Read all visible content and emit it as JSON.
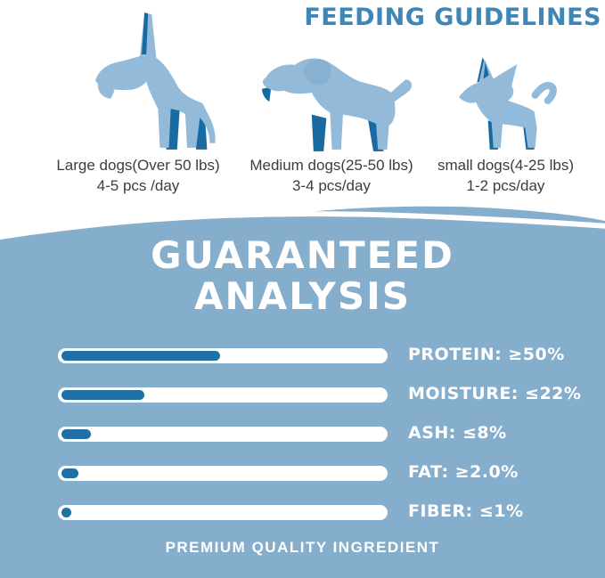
{
  "header": {
    "title": "FEEDING GUIDELINES"
  },
  "feeding": {
    "dogs": [
      {
        "name": "large-dog",
        "size_label": "Large dogs(Over 50 lbs)",
        "serving": "4-5 pcs /day"
      },
      {
        "name": "medium-dog",
        "size_label": "Medium dogs(25-50 lbs)",
        "serving": "3-4 pcs/day"
      },
      {
        "name": "small-dog",
        "size_label": "small dogs(4-25 lbs)",
        "serving": "1-2 pcs/day"
      }
    ]
  },
  "analysis": {
    "title_line1": "GUARANTEED",
    "title_line2": "ANALYSIS",
    "footer": "PREMIUM QUALITY INGREDIENT"
  },
  "chart_data": {
    "type": "bar",
    "title": "GUARANTEED ANALYSIS",
    "categories": [
      "PROTEIN",
      "MOISTURE",
      "ASH",
      "FAT",
      "FIBER"
    ],
    "labels": [
      "PROTEIN: ≥50%",
      "MOISTURE: ≤22%",
      "ASH: ≤8%",
      "FAT: ≥2.0%",
      "FIBER: ≤1%"
    ],
    "values_declared": [
      "≥50%",
      "≤22%",
      "≤8%",
      "≥2.0%",
      "≤1%"
    ],
    "values_percent_fill": [
      48,
      25,
      9,
      5,
      3
    ],
    "xlim": [
      0,
      100
    ],
    "legend": "none",
    "orientation": "horizontal"
  },
  "colors": {
    "headline_blue": "#3e86b5",
    "section_blue": "#85aecd",
    "bar_fill_blue": "#1f70a6",
    "bar_track": "#ffffff",
    "dog_body_light": "#93bad8",
    "dog_accent_dark": "#1a6aa2",
    "caption_text": "#3d3d3d",
    "analysis_text": "#ffffff",
    "background": "#ffffff"
  },
  "icons": {
    "large_dog": "great-dane-silhouette",
    "medium_dog": "labrador-silhouette",
    "small_dog": "chihuahua-silhouette"
  }
}
